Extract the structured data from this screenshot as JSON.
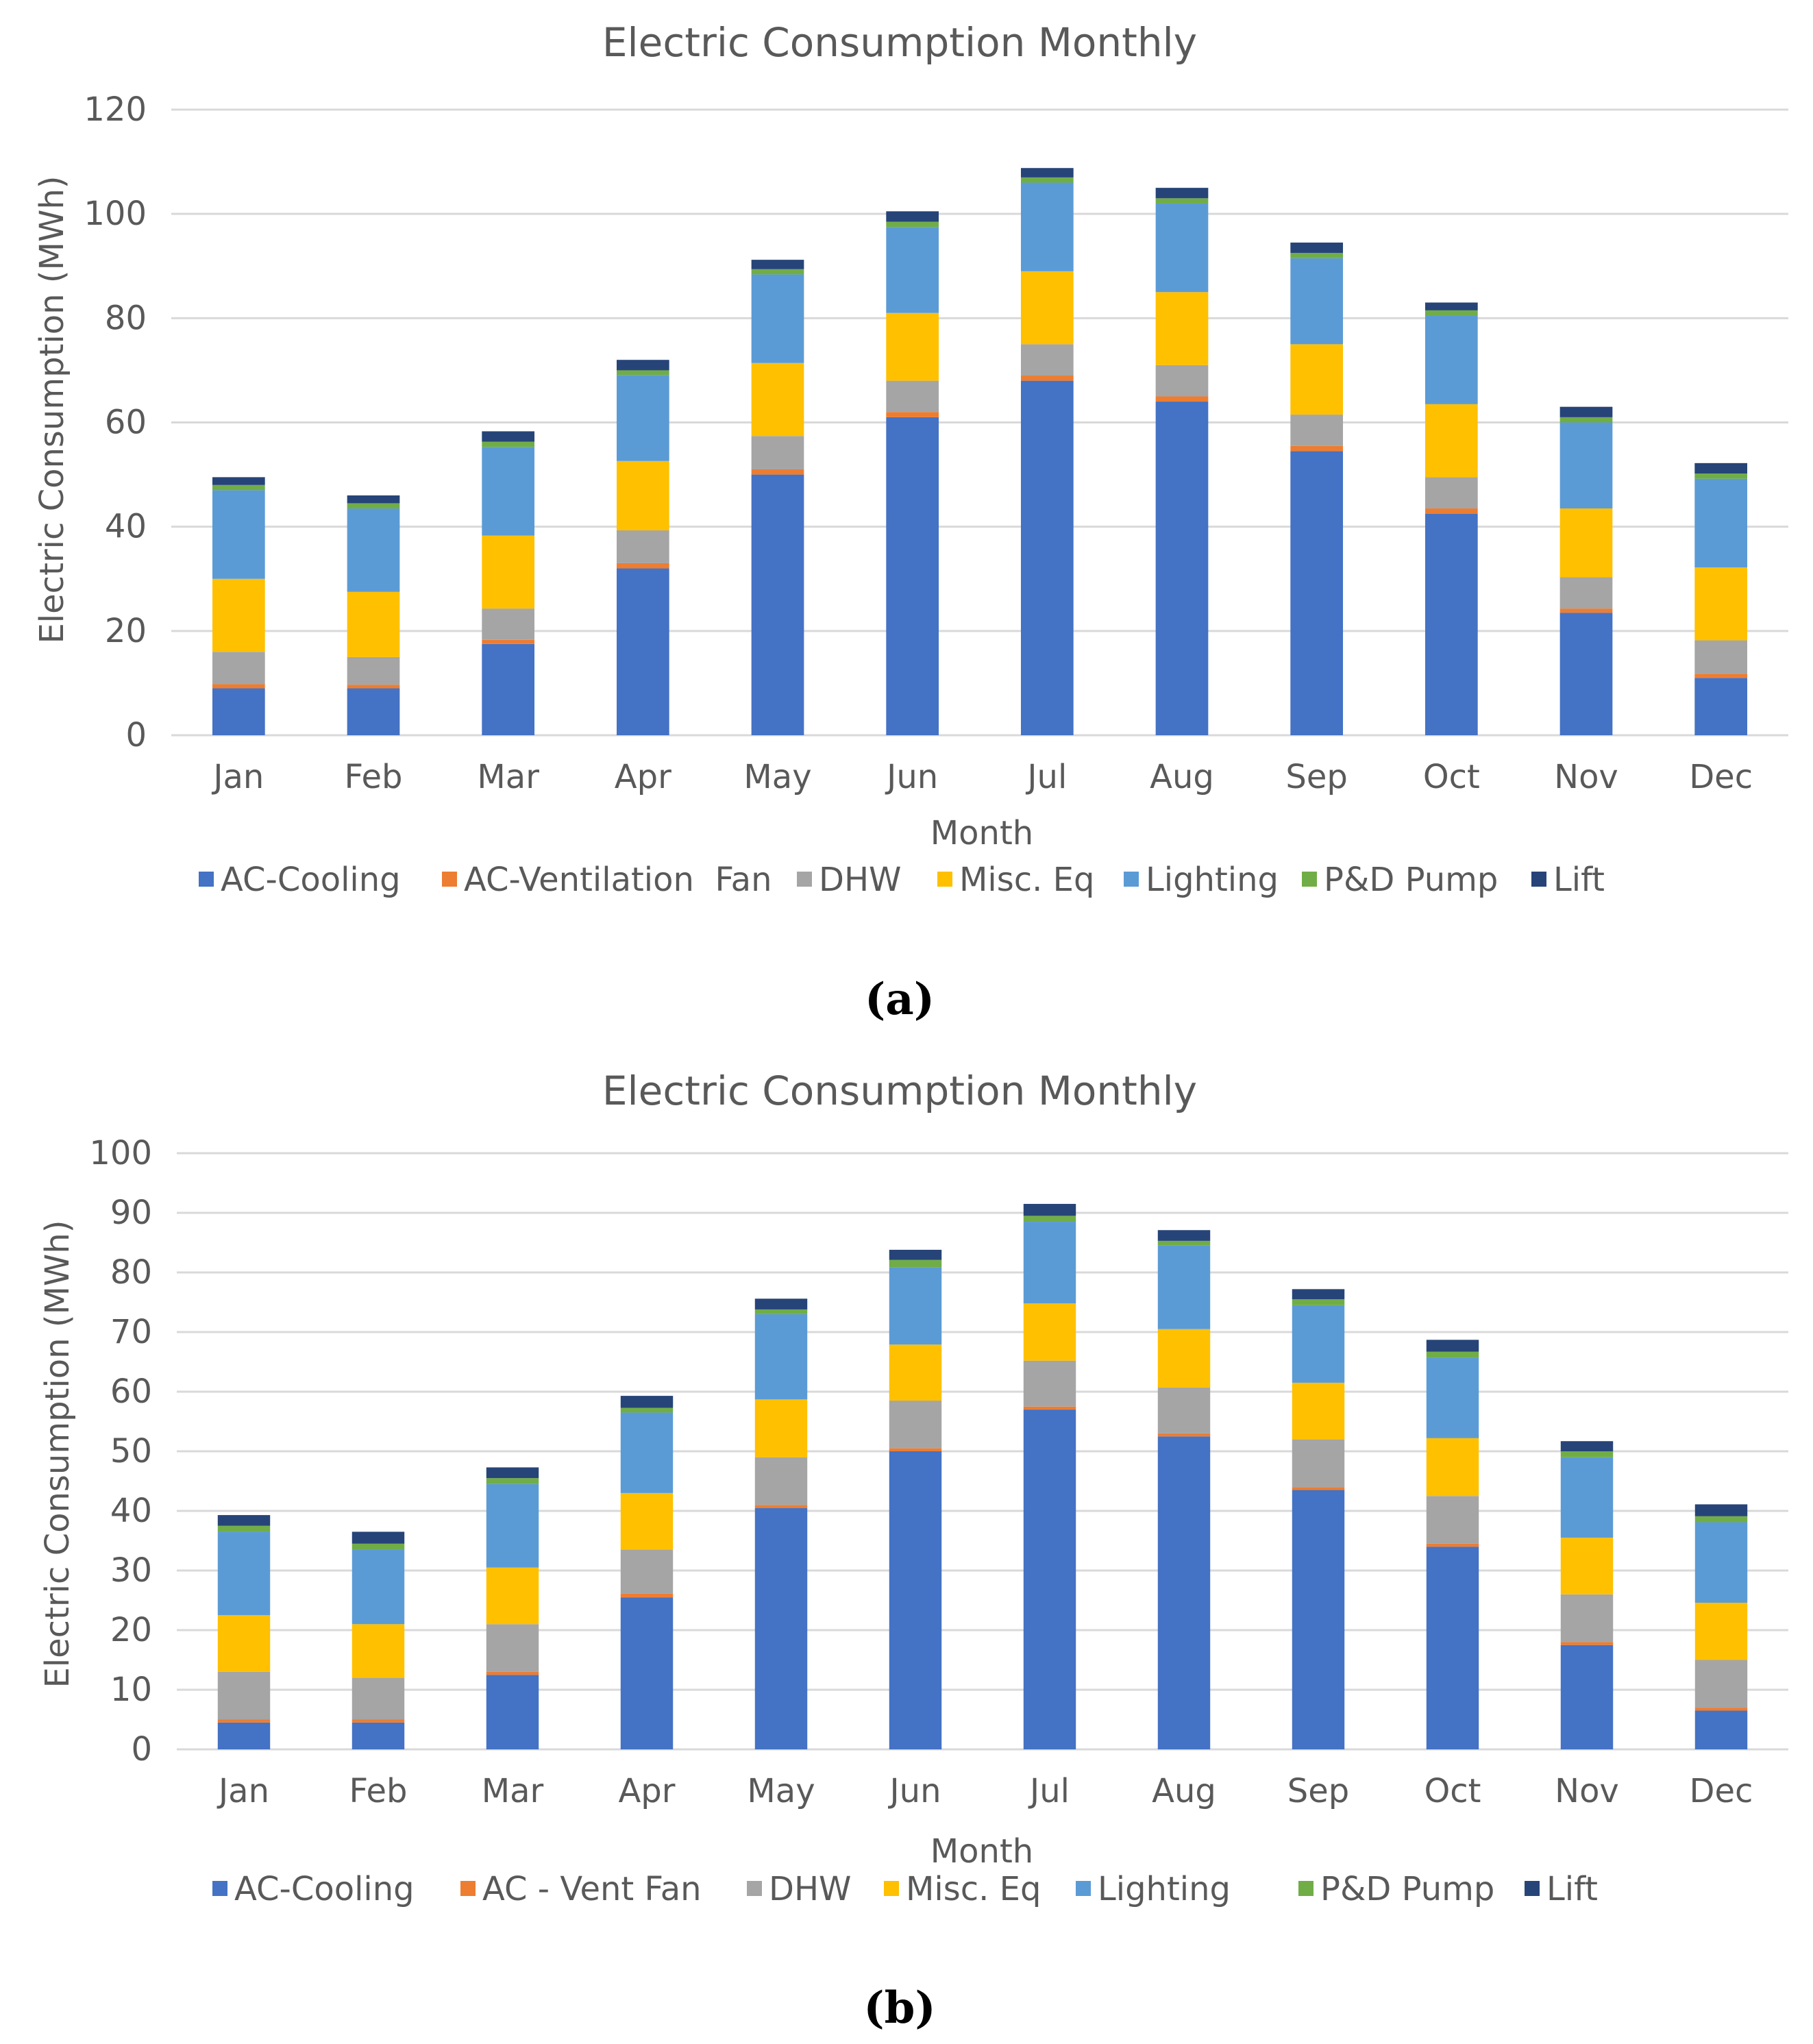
{
  "series_meta": [
    {
      "key": "ac_cooling",
      "color": "#4472c4"
    },
    {
      "key": "ac_vent",
      "color": "#ed7d31"
    },
    {
      "key": "dhw",
      "color": "#a5a5a5"
    },
    {
      "key": "misc",
      "color": "#ffc000"
    },
    {
      "key": "lighting",
      "color": "#5b9bd5"
    },
    {
      "key": "pump",
      "color": "#70ad47"
    },
    {
      "key": "lift",
      "color": "#264478"
    }
  ],
  "panels": [
    {
      "label": "(a)"
    },
    {
      "label": "(b)"
    }
  ],
  "chart_data": [
    {
      "type": "bar",
      "stacked": true,
      "title": "Electric Consumption Monthly",
      "xlabel": "Month",
      "ylabel": "Electric Consumption (MWh)",
      "ylim": [
        0,
        120
      ],
      "yticks": [
        "0",
        "20",
        "40",
        "60",
        "80",
        "100",
        "120"
      ],
      "grid": true,
      "legend": "bottom",
      "categories": [
        "Jan",
        "Feb",
        "Mar",
        "Apr",
        "May",
        "Jun",
        "Jul",
        "Aug",
        "Sep",
        "Oct",
        "Nov",
        "Dec"
      ],
      "series": [
        {
          "name": "AC-Cooling",
          "values": [
            9,
            9,
            17.5,
            32,
            50,
            61,
            68,
            64,
            54.5,
            42.5,
            23.5,
            11
          ]
        },
        {
          "name": "AC-Ventilation  Fan",
          "values": [
            0.8,
            0.7,
            0.8,
            1,
            1,
            1,
            1,
            1,
            1,
            1,
            0.8,
            0.8
          ]
        },
        {
          "name": "DHW",
          "values": [
            6.2,
            5.3,
            6,
            6.3,
            6.4,
            6,
            6,
            6,
            6,
            6,
            6,
            6.4
          ]
        },
        {
          "name": "Misc. Eq",
          "values": [
            14,
            12.5,
            14,
            13.3,
            14,
            13,
            14,
            14,
            13.5,
            14,
            13.2,
            14
          ]
        },
        {
          "name": "Lighting",
          "values": [
            17,
            16,
            17,
            16.5,
            17,
            16.5,
            17,
            17,
            16.5,
            17,
            16.5,
            17
          ]
        },
        {
          "name": "P&D Pump",
          "values": [
            1,
            1,
            1,
            0.9,
            1,
            1,
            1,
            1,
            1,
            1,
            1,
            1
          ]
        },
        {
          "name": "Lift",
          "values": [
            1.5,
            1.5,
            2,
            2,
            1.8,
            2,
            1.8,
            2,
            2,
            1.5,
            2,
            2
          ]
        }
      ]
    },
    {
      "type": "bar",
      "stacked": true,
      "title": "Electric Consumption Monthly",
      "xlabel": "Month",
      "ylabel": "Electric Consumption (MWh)",
      "ylim": [
        0,
        100
      ],
      "yticks": [
        "0",
        "10",
        "20",
        "30",
        "40",
        "50",
        "60",
        "70",
        "80",
        "90",
        "100"
      ],
      "grid": true,
      "legend": "bottom",
      "categories": [
        "Jan",
        "Feb",
        "Mar",
        "Apr",
        "May",
        "Jun",
        "Jul",
        "Aug",
        "Sep",
        "Oct",
        "Nov",
        "Dec"
      ],
      "series": [
        {
          "name": "AC-Cooling",
          "values": [
            4.5,
            4.5,
            12.5,
            25.5,
            40.5,
            50,
            57,
            52.5,
            43.5,
            34,
            17.5,
            6.5
          ]
        },
        {
          "name": "AC - Vent Fan",
          "values": [
            0.5,
            0.5,
            0.5,
            0.6,
            0.5,
            0.5,
            0.5,
            0.5,
            0.5,
            0.5,
            0.5,
            0.5
          ]
        },
        {
          "name": "DHW",
          "values": [
            8,
            7,
            8,
            7.4,
            8,
            8,
            7.7,
            7.7,
            8,
            8,
            8,
            8
          ]
        },
        {
          "name": "Misc. Eq",
          "values": [
            9.5,
            9,
            9.5,
            9.5,
            9.7,
            9.4,
            9.6,
            9.8,
            9.5,
            9.7,
            9.5,
            9.6
          ]
        },
        {
          "name": "Lighting",
          "values": [
            14,
            12.5,
            14,
            13.5,
            14.3,
            13,
            13.7,
            14,
            13,
            13.5,
            13.5,
            13.5
          ]
        },
        {
          "name": "P&D Pump",
          "values": [
            1,
            1,
            1,
            0.8,
            0.8,
            1.2,
            1,
            0.8,
            1,
            1,
            1,
            1
          ]
        },
        {
          "name": "Lift",
          "values": [
            1.8,
            2,
            1.8,
            2,
            1.8,
            1.7,
            2,
            1.8,
            1.7,
            2,
            1.7,
            2
          ]
        }
      ]
    }
  ]
}
